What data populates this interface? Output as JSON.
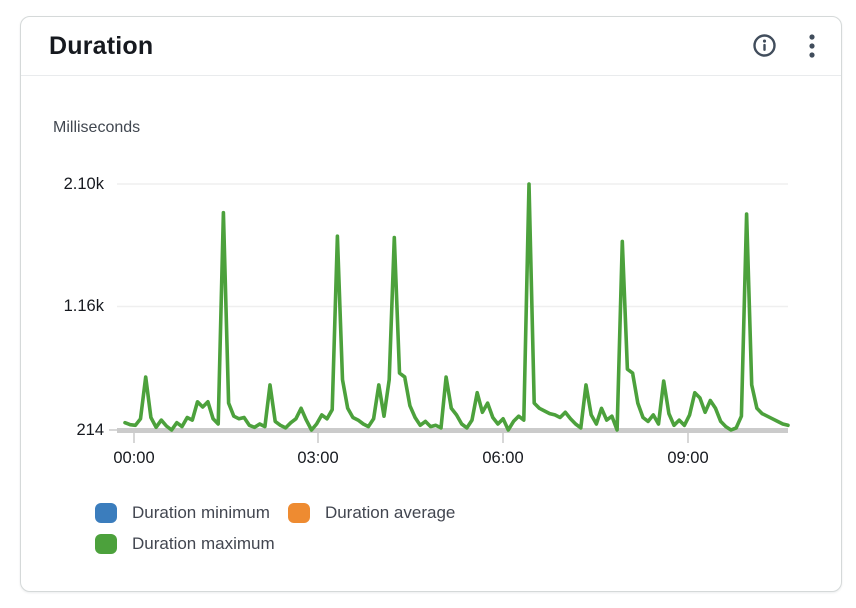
{
  "widget": {
    "title": "Duration",
    "header_icons": {
      "info": "info-icon",
      "menu": "kebab-menu-icon"
    }
  },
  "chart_data": {
    "type": "line",
    "title": "Duration",
    "y_axis_label": "Milliseconds",
    "y_ticks": [
      "2.10k",
      "1.16k",
      "214"
    ],
    "y_tick_values": [
      2100,
      1160,
      214
    ],
    "ylim": [
      214,
      2100
    ],
    "x_ticks": [
      "00:00",
      "03:00",
      "06:00",
      "09:00"
    ],
    "x_tick_hours": [
      0,
      3,
      6,
      9
    ],
    "x_range_hours": [
      -0.15,
      10.6
    ],
    "period_minutes": 5,
    "grid": "horizontal-only",
    "legend_position": "bottom",
    "series": [
      {
        "name": "Duration minimum",
        "color": "#3b7dbd",
        "visible_in_plot": false,
        "values": []
      },
      {
        "name": "Duration average",
        "color": "#ee8b31",
        "visible_in_plot": false,
        "values": []
      },
      {
        "name": "Duration maximum",
        "color": "#4ca13c",
        "visible_in_plot": true,
        "values": [
          270,
          255,
          250,
          300,
          620,
          310,
          235,
          290,
          245,
          214,
          270,
          240,
          310,
          290,
          430,
          390,
          430,
          300,
          260,
          1880,
          420,
          320,
          300,
          310,
          250,
          235,
          260,
          240,
          560,
          280,
          250,
          230,
          270,
          300,
          380,
          290,
          214,
          260,
          330,
          300,
          370,
          1700,
          600,
          380,
          310,
          290,
          260,
          240,
          300,
          560,
          320,
          600,
          1690,
          650,
          620,
          400,
          310,
          250,
          280,
          240,
          250,
          230,
          620,
          380,
          330,
          260,
          230,
          290,
          500,
          350,
          420,
          310,
          260,
          300,
          214,
          280,
          320,
          290,
          2100,
          420,
          380,
          360,
          340,
          330,
          310,
          350,
          300,
          260,
          230,
          560,
          330,
          260,
          380,
          290,
          320,
          214,
          1660,
          680,
          650,
          420,
          310,
          280,
          330,
          260,
          590,
          340,
          250,
          290,
          250,
          330,
          500,
          460,
          350,
          440,
          380,
          280,
          240,
          214,
          230,
          320,
          1870,
          560,
          380,
          340,
          320,
          300,
          280,
          260,
          250
        ]
      }
    ]
  },
  "colors": {
    "card_border": "#d5d9d9",
    "divider": "#e9ebed",
    "axis_baseline": "#cbcbcb",
    "gridline": "#efefef",
    "tick": "#d7d7d7",
    "text_primary": "#16191f",
    "text_secondary": "#414750",
    "legend_text": "#424650",
    "icon": "#414d5c"
  }
}
